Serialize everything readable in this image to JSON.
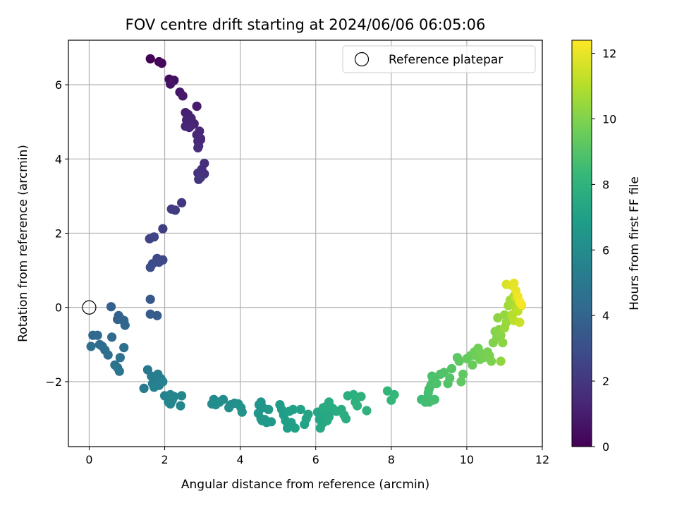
{
  "chart_data": {
    "type": "scatter",
    "title": "FOV centre drift starting at 2024/06/06 06:05:06",
    "xlabel": "Angular distance from reference (arcmin)",
    "ylabel": "Rotation from reference (arcmin)",
    "xlim": [
      -0.55,
      12.0
    ],
    "ylim": [
      -3.75,
      7.2
    ],
    "xticks": [
      0,
      2,
      4,
      6,
      8,
      10,
      12
    ],
    "yticks": [
      -2,
      0,
      2,
      4,
      6
    ],
    "xtick_labels": [
      "0",
      "2",
      "4",
      "6",
      "8",
      "10",
      "12"
    ],
    "ytick_labels": [
      "−2",
      "0",
      "2",
      "4",
      "6"
    ],
    "grid": true,
    "legend": {
      "label": "Reference platepar",
      "placement": "upper right"
    },
    "reference_point": {
      "x": 0,
      "y": 0
    },
    "colorbar": {
      "label": "Hours from first FF file",
      "colormap": "viridis",
      "range": [
        0,
        12.4
      ],
      "ticks": [
        0,
        2,
        4,
        6,
        8,
        10,
        12
      ],
      "tick_labels": [
        "0",
        "2",
        "4",
        "6",
        "8",
        "10",
        "12"
      ]
    },
    "colormap_stops": [
      "#440154",
      "#482878",
      "#3e4989",
      "#31688e",
      "#26828e",
      "#1f9e89",
      "#35b779",
      "#6ece58",
      "#b5de2b",
      "#fde725"
    ],
    "series": [
      {
        "points": [
          [
            1.62,
            6.7,
            0.05
          ],
          [
            1.85,
            6.62,
            0.15
          ],
          [
            1.92,
            6.58,
            0.25
          ],
          [
            2.12,
            6.15,
            0.4
          ],
          [
            2.25,
            6.12,
            0.5
          ],
          [
            2.15,
            6.02,
            0.6
          ],
          [
            2.4,
            5.8,
            0.75
          ],
          [
            2.48,
            5.7,
            0.85
          ],
          [
            2.85,
            5.42,
            0.95
          ],
          [
            2.55,
            5.25,
            1.05
          ],
          [
            2.62,
            5.2,
            1.1
          ],
          [
            2.7,
            5.1,
            1.15
          ],
          [
            2.58,
            5.05,
            1.2
          ],
          [
            2.78,
            4.95,
            1.25
          ],
          [
            2.65,
            4.85,
            1.3
          ],
          [
            2.92,
            4.75,
            1.35
          ],
          [
            2.85,
            4.65,
            1.4
          ],
          [
            2.95,
            4.55,
            1.45
          ],
          [
            2.88,
            4.48,
            1.5
          ],
          [
            2.7,
            4.9,
            1.28
          ],
          [
            2.55,
            4.88,
            1.32
          ],
          [
            2.9,
            4.35,
            1.55
          ],
          [
            2.95,
            4.52,
            1.42
          ],
          [
            2.88,
            4.3,
            1.58
          ],
          [
            2.98,
            3.72,
            1.65
          ],
          [
            2.88,
            3.62,
            1.75
          ],
          [
            3.05,
            3.6,
            1.8
          ],
          [
            2.95,
            3.5,
            1.85
          ],
          [
            3.05,
            3.88,
            1.7
          ],
          [
            2.9,
            3.45,
            1.9
          ],
          [
            2.45,
            2.82,
            2.05
          ],
          [
            2.18,
            2.65,
            2.15
          ],
          [
            2.28,
            2.62,
            2.2
          ],
          [
            1.95,
            2.12,
            2.35
          ],
          [
            1.6,
            1.85,
            2.5
          ],
          [
            1.72,
            1.9,
            2.55
          ],
          [
            1.8,
            1.32,
            2.7
          ],
          [
            1.95,
            1.28,
            2.75
          ],
          [
            1.68,
            1.18,
            2.85
          ],
          [
            1.85,
            1.22,
            2.8
          ],
          [
            1.62,
            1.08,
            2.9
          ],
          [
            1.62,
            0.22,
            3.4
          ],
          [
            1.62,
            -0.18,
            3.55
          ],
          [
            1.8,
            -0.22,
            3.6
          ],
          [
            0.58,
            0.02,
            3.8
          ],
          [
            0.78,
            -0.22,
            3.9
          ],
          [
            0.85,
            -0.32,
            3.95
          ],
          [
            0.92,
            -0.35,
            4.0
          ],
          [
            0.95,
            -0.48,
            4.05
          ],
          [
            0.75,
            -0.32,
            3.92
          ],
          [
            0.1,
            -0.75,
            4.2
          ],
          [
            0.22,
            -0.75,
            4.25
          ],
          [
            0.28,
            -1.0,
            4.35
          ],
          [
            0.35,
            -1.05,
            4.4
          ],
          [
            0.05,
            -1.05,
            4.45
          ],
          [
            0.42,
            -1.15,
            4.5
          ],
          [
            0.5,
            -1.28,
            4.55
          ],
          [
            0.6,
            -0.8,
            4.3
          ],
          [
            0.92,
            -1.08,
            4.6
          ],
          [
            0.82,
            -1.35,
            4.65
          ],
          [
            0.68,
            -1.55,
            4.7
          ],
          [
            0.75,
            -1.62,
            4.75
          ],
          [
            0.8,
            -1.72,
            4.8
          ],
          [
            1.55,
            -1.68,
            5.0
          ],
          [
            1.45,
            -2.18,
            5.1
          ],
          [
            1.65,
            -1.85,
            5.15
          ],
          [
            1.75,
            -1.95,
            5.2
          ],
          [
            1.82,
            -1.8,
            5.25
          ],
          [
            1.68,
            -2.05,
            5.3
          ],
          [
            1.9,
            -1.92,
            5.35
          ],
          [
            1.85,
            -2.1,
            5.4
          ],
          [
            1.72,
            -2.15,
            5.45
          ],
          [
            1.95,
            -2.0,
            5.5
          ],
          [
            2.0,
            -2.38,
            5.55
          ],
          [
            2.15,
            -2.35,
            5.6
          ],
          [
            2.2,
            -2.5,
            5.65
          ],
          [
            2.1,
            -2.55,
            5.68
          ],
          [
            2.25,
            -2.4,
            5.7
          ],
          [
            2.45,
            -2.38,
            5.75
          ],
          [
            2.42,
            -2.65,
            5.78
          ],
          [
            2.15,
            -2.6,
            5.72
          ],
          [
            3.3,
            -2.48,
            5.9
          ],
          [
            3.25,
            -2.6,
            5.95
          ],
          [
            3.45,
            -2.55,
            6.0
          ],
          [
            3.55,
            -2.48,
            6.02
          ],
          [
            3.35,
            -2.62,
            6.05
          ],
          [
            3.75,
            -2.62,
            6.1
          ],
          [
            3.85,
            -2.58,
            6.15
          ],
          [
            3.95,
            -2.6,
            6.2
          ],
          [
            4.02,
            -2.7,
            6.25
          ],
          [
            4.05,
            -2.82,
            6.28
          ],
          [
            3.7,
            -2.7,
            6.12
          ],
          [
            4.5,
            -2.62,
            6.4
          ],
          [
            4.55,
            -2.55,
            6.45
          ],
          [
            4.48,
            -2.85,
            6.5
          ],
          [
            4.55,
            -3.0,
            6.55
          ],
          [
            4.65,
            -3.02,
            6.6
          ],
          [
            4.75,
            -2.75,
            6.62
          ],
          [
            4.6,
            -2.7,
            6.48
          ],
          [
            4.82,
            -3.08,
            6.65
          ],
          [
            4.58,
            -3.05,
            6.58
          ],
          [
            4.7,
            -3.1,
            6.68
          ],
          [
            5.05,
            -2.62,
            6.8
          ],
          [
            5.1,
            -2.75,
            6.85
          ],
          [
            5.15,
            -2.9,
            6.88
          ],
          [
            5.2,
            -3.05,
            6.92
          ],
          [
            5.25,
            -3.25,
            6.95
          ],
          [
            5.3,
            -2.8,
            6.98
          ],
          [
            5.4,
            -2.75,
            7.0
          ],
          [
            5.45,
            -3.25,
            7.05
          ],
          [
            5.35,
            -3.1,
            7.02
          ],
          [
            5.6,
            -2.75,
            7.1
          ],
          [
            5.7,
            -3.15,
            7.15
          ],
          [
            5.75,
            -3.0,
            7.18
          ],
          [
            5.8,
            -2.88,
            7.2
          ],
          [
            6.05,
            -2.82,
            7.3
          ],
          [
            6.1,
            -3.02,
            7.35
          ],
          [
            6.12,
            -3.25,
            7.38
          ],
          [
            6.2,
            -3.1,
            7.42
          ],
          [
            6.25,
            -2.85,
            7.45
          ],
          [
            6.3,
            -3.05,
            7.48
          ],
          [
            6.35,
            -2.95,
            7.5
          ],
          [
            6.4,
            -2.8,
            7.52
          ],
          [
            6.2,
            -2.7,
            7.55
          ],
          [
            6.35,
            -2.55,
            7.58
          ],
          [
            6.45,
            -2.72,
            7.6
          ],
          [
            6.55,
            -2.8,
            7.62
          ],
          [
            6.68,
            -2.75,
            7.65
          ],
          [
            6.75,
            -2.9,
            7.68
          ],
          [
            6.8,
            -3.0,
            7.7
          ],
          [
            6.3,
            -2.65,
            7.56
          ],
          [
            6.85,
            -2.38,
            7.75
          ],
          [
            7.0,
            -2.35,
            7.8
          ],
          [
            7.05,
            -2.55,
            7.85
          ],
          [
            7.1,
            -2.65,
            7.88
          ],
          [
            7.2,
            -2.4,
            7.9
          ],
          [
            7.35,
            -2.78,
            7.95
          ],
          [
            7.9,
            -2.25,
            8.15
          ],
          [
            8.0,
            -2.5,
            8.2
          ],
          [
            8.08,
            -2.35,
            8.25
          ],
          [
            8.8,
            -2.48,
            8.5
          ],
          [
            8.9,
            -2.55,
            8.55
          ],
          [
            8.95,
            -2.45,
            8.58
          ],
          [
            9.0,
            -2.55,
            8.6
          ],
          [
            9.05,
            -2.5,
            8.62
          ],
          [
            8.98,
            -2.3,
            8.65
          ],
          [
            9.1,
            -2.5,
            8.68
          ],
          [
            9.15,
            -2.48,
            8.7
          ],
          [
            9.0,
            -2.2,
            8.72
          ],
          [
            9.05,
            -2.1,
            8.75
          ],
          [
            9.1,
            -2.0,
            8.78
          ],
          [
            9.08,
            -1.85,
            8.8
          ],
          [
            9.15,
            -1.9,
            8.82
          ],
          [
            9.2,
            -2.05,
            8.85
          ],
          [
            9.3,
            -1.8,
            8.9
          ],
          [
            9.4,
            -1.75,
            8.95
          ],
          [
            9.5,
            -2.05,
            9.0
          ],
          [
            9.55,
            -1.9,
            9.02
          ],
          [
            9.6,
            -1.65,
            9.05
          ],
          [
            9.75,
            -1.35,
            9.2
          ],
          [
            9.8,
            -1.45,
            9.25
          ],
          [
            9.9,
            -1.8,
            9.28
          ],
          [
            9.85,
            -2.0,
            9.3
          ],
          [
            10.0,
            -1.38,
            9.4
          ],
          [
            10.1,
            -1.3,
            9.45
          ],
          [
            10.15,
            -1.55,
            9.48
          ],
          [
            10.2,
            -1.2,
            9.6
          ],
          [
            10.25,
            -1.3,
            9.65
          ],
          [
            10.3,
            -1.1,
            9.7
          ],
          [
            10.35,
            -1.4,
            9.72
          ],
          [
            10.4,
            -1.25,
            9.75
          ],
          [
            10.45,
            -1.35,
            9.78
          ],
          [
            10.55,
            -1.2,
            9.82
          ],
          [
            10.6,
            -1.3,
            9.85
          ],
          [
            10.65,
            -1.45,
            9.88
          ],
          [
            10.7,
            -0.95,
            10.0
          ],
          [
            10.75,
            -0.65,
            10.05
          ],
          [
            10.8,
            -0.8,
            10.1
          ],
          [
            10.85,
            -0.6,
            10.15
          ],
          [
            10.9,
            -0.75,
            10.18
          ],
          [
            10.95,
            -0.95,
            10.2
          ],
          [
            10.82,
            -0.28,
            10.25
          ],
          [
            11.0,
            -0.2,
            10.4
          ],
          [
            11.05,
            -0.4,
            10.45
          ],
          [
            11.0,
            -0.55,
            10.48
          ],
          [
            10.9,
            -1.45,
            10.3
          ],
          [
            11.1,
            0.05,
            10.6
          ],
          [
            11.15,
            0.2,
            10.65
          ],
          [
            11.2,
            0.1,
            10.7
          ],
          [
            11.25,
            0.3,
            10.8
          ],
          [
            11.3,
            0.0,
            10.9
          ],
          [
            11.2,
            -0.2,
            11.0
          ],
          [
            11.25,
            -0.35,
            11.1
          ],
          [
            11.35,
            -0.1,
            11.2
          ],
          [
            11.3,
            0.25,
            11.3
          ],
          [
            11.4,
            -0.4,
            11.4
          ],
          [
            11.45,
            0.05,
            11.5
          ],
          [
            11.05,
            0.62,
            11.7
          ],
          [
            11.18,
            0.6,
            11.8
          ],
          [
            11.25,
            0.65,
            11.9
          ],
          [
            11.3,
            0.45,
            12.0
          ],
          [
            11.35,
            0.3,
            12.1
          ],
          [
            11.4,
            0.15,
            12.2
          ],
          [
            11.45,
            0.08,
            12.3
          ]
        ]
      }
    ]
  }
}
